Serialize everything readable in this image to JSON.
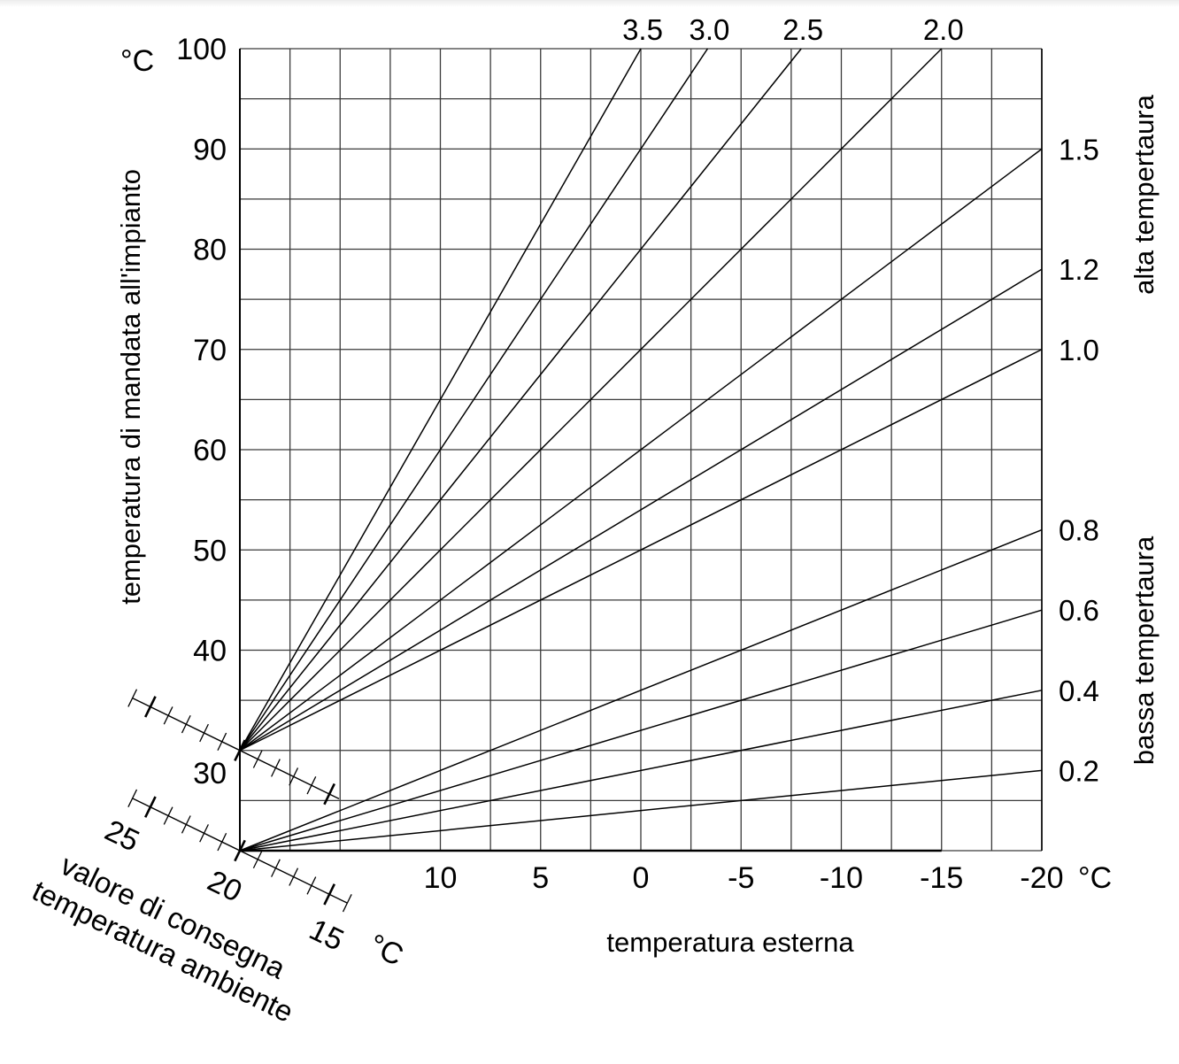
{
  "chart_data": {
    "type": "line",
    "title": "",
    "xlabel": "temperatura esterna",
    "ylabel": "temperatura di mandata all'impianto",
    "x_unit": "°C",
    "y_unit": "°C",
    "x_ticks": [
      10,
      5,
      0,
      -5,
      -10,
      -15,
      -20
    ],
    "y_ticks": [
      100,
      90,
      80,
      70,
      60,
      50,
      40,
      30
    ],
    "xlim": [
      20,
      -20
    ],
    "ylim": [
      20,
      100
    ],
    "grid": true,
    "grid_step_x": 2.5,
    "grid_step_y": 5,
    "right_group_labels": {
      "high": "alta tempertaura",
      "low": "bassa tempertaura"
    },
    "setpoint_scale": {
      "label_line1": "valore di consegna",
      "label_line2": "temperatura ambiente",
      "unit": "°C",
      "ticks": [
        "25",
        "20",
        "15"
      ]
    },
    "series": [
      {
        "name": "3.5",
        "group": "high",
        "label_pos": "top",
        "points": [
          [
            20,
            30
          ],
          [
            0,
            100
          ]
        ]
      },
      {
        "name": "3.0",
        "group": "high",
        "label_pos": "top",
        "points": [
          [
            20,
            30
          ],
          [
            -3.33,
            100
          ]
        ]
      },
      {
        "name": "2.5",
        "group": "high",
        "label_pos": "top",
        "points": [
          [
            20,
            30
          ],
          [
            -8,
            100
          ]
        ]
      },
      {
        "name": "2.0",
        "group": "high",
        "label_pos": "top",
        "points": [
          [
            20,
            30
          ],
          [
            -15,
            100
          ]
        ]
      },
      {
        "name": "1.5",
        "group": "high",
        "label_pos": "right",
        "points": [
          [
            20,
            30
          ],
          [
            -20,
            90
          ]
        ]
      },
      {
        "name": "1.2",
        "group": "high",
        "label_pos": "right",
        "points": [
          [
            20,
            30
          ],
          [
            -20,
            78
          ]
        ]
      },
      {
        "name": "1.0",
        "group": "high",
        "label_pos": "right",
        "points": [
          [
            20,
            30
          ],
          [
            -20,
            70
          ]
        ]
      },
      {
        "name": "0.8",
        "group": "low",
        "label_pos": "right",
        "points": [
          [
            20,
            20
          ],
          [
            -20,
            52
          ]
        ]
      },
      {
        "name": "0.6",
        "group": "low",
        "label_pos": "right",
        "points": [
          [
            20,
            20
          ],
          [
            -20,
            44
          ]
        ]
      },
      {
        "name": "0.4",
        "group": "low",
        "label_pos": "right",
        "points": [
          [
            20,
            20
          ],
          [
            -20,
            36
          ]
        ]
      },
      {
        "name": "0.2",
        "group": "low",
        "label_pos": "right",
        "points": [
          [
            20,
            20
          ],
          [
            -20,
            28
          ]
        ]
      }
    ]
  },
  "labels": {
    "y_unit": "°C",
    "x_unit": "°C",
    "y_title": "temperatura di mandata all'impianto",
    "x_title": "temperatura esterna",
    "alta": "alta tempertaura",
    "bassa": "bassa tempertaura",
    "setpoint_line1": "valore di consegna",
    "setpoint_line2": "temperatura ambiente",
    "setpoint_unit": "°C",
    "setpoint_25": "25",
    "setpoint_20": "20",
    "setpoint_15": "15",
    "y_30": "30"
  }
}
